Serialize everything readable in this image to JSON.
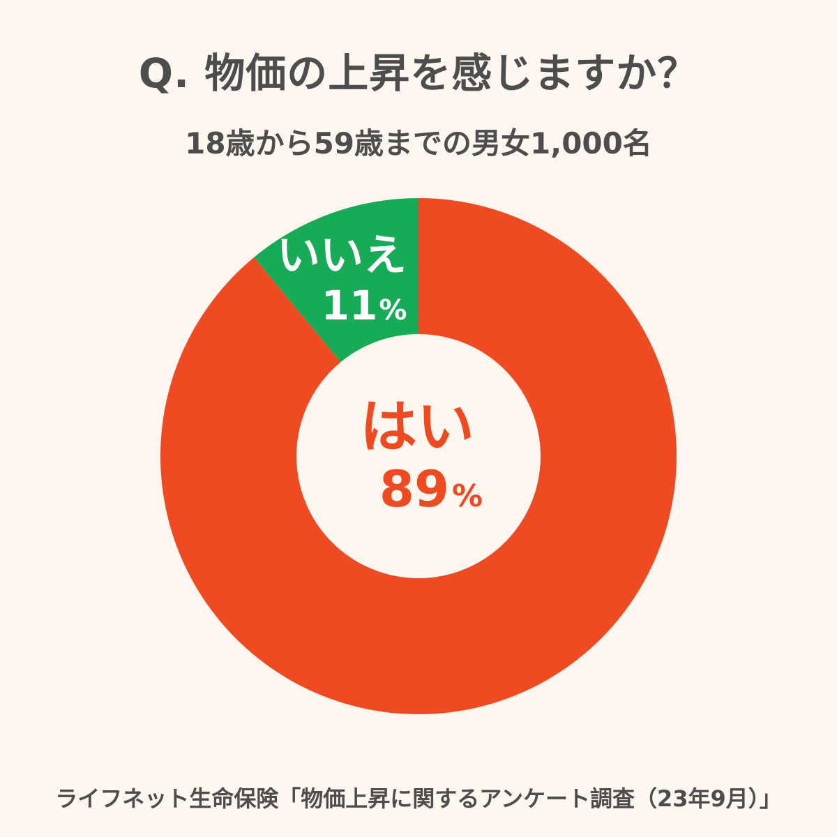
{
  "chart_data": {
    "type": "pie",
    "title": "Q. 物価の上昇を感じますか？",
    "subtitle": "18歳から59歳までの男女1,000名",
    "slices": [
      {
        "label": "はい",
        "value": 89,
        "value_label": "89",
        "unit": "%",
        "color": "#f04a23"
      },
      {
        "label": "いいえ",
        "value": 11,
        "value_label": "11",
        "unit": "%",
        "color": "#17ab57"
      }
    ],
    "source": "ライフネット生命保険「物価上昇に関するアンケート調査（23年9月）」"
  }
}
